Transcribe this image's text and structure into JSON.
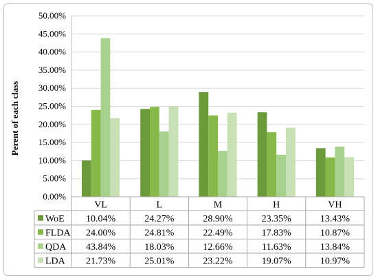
{
  "chart_data": {
    "type": "bar",
    "title": "",
    "xlabel": "",
    "ylabel": "Perent of each class",
    "categories": [
      "VL",
      "L",
      "M",
      "H",
      "VH"
    ],
    "ylim": [
      0,
      50
    ],
    "y_ticks": [
      "0.00%",
      "5.00%",
      "10.00%",
      "15.00%",
      "20.00%",
      "25.00%",
      "30.00%",
      "35.00%",
      "40.00%",
      "45.00%",
      "50.00%"
    ],
    "grid": true,
    "legend": "data-table",
    "series": [
      {
        "name": "WoE",
        "color": "#6a9a3a",
        "values": [
          10.04,
          24.27,
          28.9,
          23.35,
          13.43
        ],
        "labels": [
          "10.04%",
          "24.27%",
          "28.90%",
          "23.35%",
          "13.43%"
        ]
      },
      {
        "name": "FLDA",
        "color": "#86b84a",
        "values": [
          24.0,
          24.81,
          22.49,
          17.83,
          10.87
        ],
        "labels": [
          "24.00%",
          "24.81%",
          "22.49%",
          "17.83%",
          "10.87%"
        ]
      },
      {
        "name": "QDA",
        "color": "#a9d18e",
        "values": [
          43.84,
          18.03,
          12.66,
          11.63,
          13.84
        ],
        "labels": [
          "43.84%",
          "18.03%",
          "12.66%",
          "11.63%",
          "13.84%"
        ]
      },
      {
        "name": "LDA",
        "color": "#c8e0b4",
        "values": [
          21.73,
          25.01,
          23.22,
          19.07,
          10.97
        ],
        "labels": [
          "21.73%",
          "25.01%",
          "23.22%",
          "19.07%",
          "10.97%"
        ]
      }
    ]
  }
}
